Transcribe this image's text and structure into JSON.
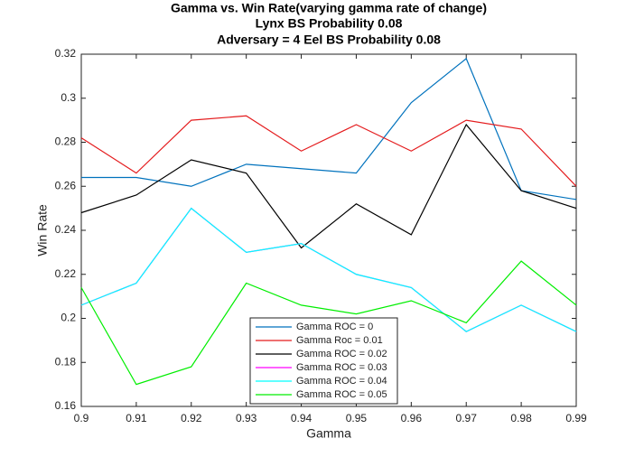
{
  "chart_data": {
    "type": "line",
    "title": [
      "Gamma vs. Win Rate(varying gamma rate of change)",
      "Lynx BS Probability 0.08",
      "Adversary = 4 Eel BS Probability 0.08"
    ],
    "x_label": "Gamma",
    "y_label": "Win Rate",
    "x": [
      0.9,
      0.91,
      0.92,
      0.93,
      0.94,
      0.95,
      0.96,
      0.97,
      0.98,
      0.99
    ],
    "series": [
      {
        "name": "Gamma ROC = 0",
        "color": "#0072bd",
        "values": [
          0.264,
          0.264,
          0.26,
          0.27,
          0.268,
          0.266,
          0.298,
          0.318,
          0.258,
          0.254
        ]
      },
      {
        "name": "Gamma Roc = 0.01",
        "color": "#e41a1c",
        "values": [
          0.282,
          0.266,
          0.29,
          0.292,
          0.276,
          0.288,
          0.276,
          0.29,
          0.286,
          0.26
        ]
      },
      {
        "name": "Gamma ROC = 0.02",
        "color": "#000000",
        "values": [
          0.248,
          0.256,
          0.272,
          0.266,
          0.232,
          0.252,
          0.238,
          0.288,
          0.258,
          0.25
        ]
      },
      {
        "name": "Gamma ROC = 0.03",
        "color": "#ff00ff",
        "values": [
          0.206,
          0.216,
          0.25,
          0.23,
          0.234,
          0.22,
          0.214,
          0.194,
          0.206,
          0.194
        ]
      },
      {
        "name": "Gamma ROC = 0.04",
        "color": "#00ffff",
        "values": [
          0.206,
          0.216,
          0.25,
          0.23,
          0.234,
          0.22,
          0.214,
          0.194,
          0.206,
          0.194
        ]
      },
      {
        "name": "Gamma ROC = 0.05",
        "color": "#00ee00",
        "values": [
          0.214,
          0.17,
          0.178,
          0.216,
          0.206,
          0.202,
          0.208,
          0.198,
          0.226,
          0.206
        ]
      }
    ],
    "xlim": [
      0.9,
      0.99
    ],
    "xticks": [
      0.9,
      0.91,
      0.92,
      0.93,
      0.94,
      0.95,
      0.96,
      0.97,
      0.98,
      0.99
    ],
    "ylim": [
      0.16,
      0.32
    ],
    "yticks": [
      0.16,
      0.18,
      0.2,
      0.22,
      0.24,
      0.26,
      0.28,
      0.3,
      0.32
    ],
    "grid": false,
    "legend": "bottom"
  }
}
